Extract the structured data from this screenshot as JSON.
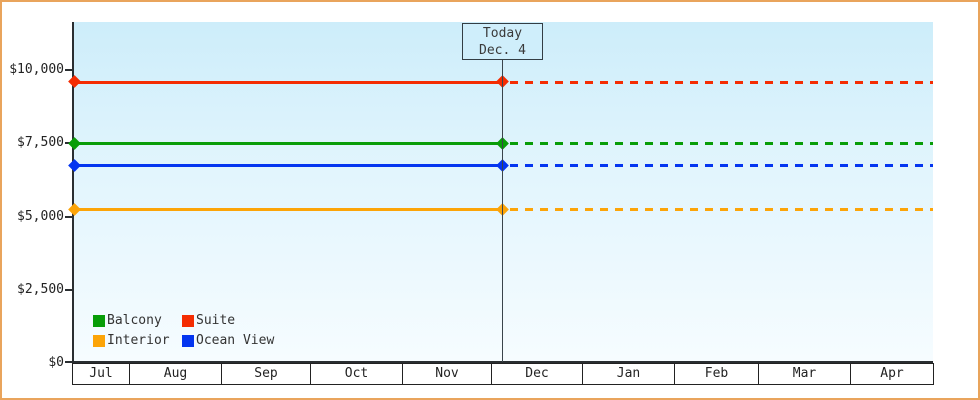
{
  "chart_data": {
    "type": "line",
    "title": "",
    "x_categories": [
      "Jul",
      "Aug",
      "Sep",
      "Oct",
      "Nov",
      "Dec",
      "Jan",
      "Feb",
      "Mar",
      "Apr"
    ],
    "today": {
      "label_line1": "Today",
      "label_line2": "Dec. 4",
      "position_month": "Dec"
    },
    "y_axis": {
      "tick_labels": [
        "$10,000",
        "$7,500",
        "$5,000",
        "$2,500",
        "$0"
      ],
      "tick_values": [
        10000,
        7500,
        5000,
        2500,
        0
      ],
      "range": [
        0,
        10800
      ],
      "grid": false
    },
    "series": [
      {
        "name": "Suite",
        "color": "#f42c02",
        "value": 9600,
        "before_today": "solid",
        "after_today": "dashed"
      },
      {
        "name": "Balcony",
        "color": "#089d08",
        "value": 7500,
        "before_today": "solid",
        "after_today": "dashed"
      },
      {
        "name": "Ocean View",
        "color": "#0435f0",
        "value": 6750,
        "before_today": "solid",
        "after_today": "dashed"
      },
      {
        "name": "Interior",
        "color": "#fca408",
        "value": 5250,
        "before_today": "solid",
        "after_today": "dashed"
      }
    ],
    "legend": {
      "position": "bottom-left",
      "items": [
        {
          "label": "Balcony",
          "color": "#089d08"
        },
        {
          "label": "Suite",
          "color": "#f42c02"
        },
        {
          "label": "Interior",
          "color": "#fca408"
        },
        {
          "label": "Ocean View",
          "color": "#0435f0"
        }
      ]
    },
    "frame_border_color": "#e9a45c"
  }
}
